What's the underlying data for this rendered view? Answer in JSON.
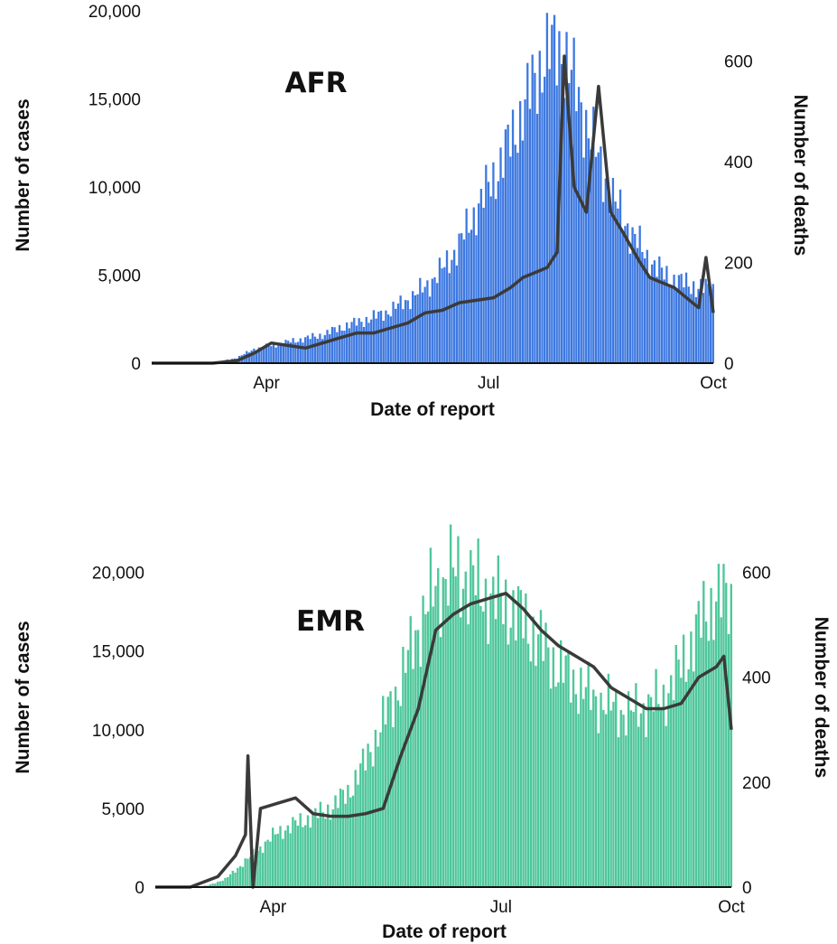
{
  "chart_data": [
    {
      "type": "bar",
      "title": "AFR",
      "xlabel": "Date of report",
      "ylabel": "Number of cases",
      "y2label": "Number of deaths",
      "x_tick_labels": [
        "Apr",
        "Jul",
        "Oct"
      ],
      "y_tick_labels": [
        "0",
        "5,000",
        "10,000",
        "15,000",
        "20,000"
      ],
      "y2_tick_labels": [
        "0",
        "200",
        "400",
        "600"
      ],
      "ylim": [
        0,
        20000
      ],
      "y2lim": [
        0,
        700
      ],
      "xlim": [
        "2020-02-14",
        "2020-10-01"
      ],
      "grid": false,
      "legend": "none",
      "colors": {
        "cases": "#3d78e0",
        "deaths": "#3a3a3a"
      },
      "series": [
        {
          "type": "bar",
          "axis": "left",
          "start_date": "2020-02-14",
          "granularity": "weekly",
          "x": [
            "2020-02-14",
            "2020-02-21",
            "2020-02-28",
            "2020-03-06",
            "2020-03-13",
            "2020-03-20",
            "2020-03-27",
            "2020-04-03",
            "2020-04-10",
            "2020-04-17",
            "2020-04-24",
            "2020-05-01",
            "2020-05-08",
            "2020-05-15",
            "2020-05-22",
            "2020-05-29",
            "2020-06-05",
            "2020-06-12",
            "2020-06-19",
            "2020-06-26",
            "2020-07-03",
            "2020-07-10",
            "2020-07-17",
            "2020-07-24",
            "2020-07-31",
            "2020-08-07",
            "2020-08-14",
            "2020-08-21",
            "2020-08-28",
            "2020-09-04",
            "2020-09-11",
            "2020-09-18",
            "2020-09-25",
            "2020-10-01"
          ],
          "values": [
            0,
            0,
            0,
            0,
            100,
            300,
            800,
            1000,
            1200,
            1400,
            1600,
            2000,
            2300,
            2600,
            3000,
            3600,
            4300,
            5300,
            6700,
            8700,
            10500,
            12600,
            15000,
            17500,
            18000,
            15000,
            12000,
            9300,
            7500,
            6000,
            5000,
            4600,
            4300,
            4200
          ]
        },
        {
          "type": "line",
          "axis": "right",
          "x": [
            "2020-02-14",
            "2020-02-28",
            "2020-03-10",
            "2020-03-20",
            "2020-03-27",
            "2020-04-03",
            "2020-04-10",
            "2020-04-17",
            "2020-04-24",
            "2020-05-01",
            "2020-05-08",
            "2020-05-15",
            "2020-05-22",
            "2020-05-29",
            "2020-06-05",
            "2020-06-12",
            "2020-06-19",
            "2020-06-26",
            "2020-07-03",
            "2020-07-10",
            "2020-07-15",
            "2020-07-20",
            "2020-07-25",
            "2020-07-29",
            "2020-08-01",
            "2020-08-05",
            "2020-08-10",
            "2020-08-15",
            "2020-08-20",
            "2020-08-25",
            "2020-09-01",
            "2020-09-05",
            "2020-09-10",
            "2020-09-15",
            "2020-09-20",
            "2020-09-25",
            "2020-09-28",
            "2020-10-01"
          ],
          "values": [
            0,
            0,
            0,
            5,
            20,
            40,
            35,
            30,
            40,
            50,
            60,
            60,
            70,
            80,
            100,
            105,
            120,
            125,
            130,
            150,
            170,
            180,
            190,
            220,
            610,
            350,
            300,
            550,
            300,
            260,
            200,
            170,
            160,
            150,
            130,
            110,
            210,
            100
          ]
        }
      ]
    },
    {
      "type": "bar",
      "title": "EMR",
      "xlabel": "Date of report",
      "ylabel": "Number of cases",
      "y2label": "Number of deaths",
      "x_tick_labels": [
        "Apr",
        "Jul",
        "Oct"
      ],
      "y_tick_labels": [
        "0",
        "5,000",
        "10,000",
        "15,000",
        "20,000"
      ],
      "y2_tick_labels": [
        "0",
        "200",
        "400",
        "600"
      ],
      "ylim": [
        0,
        22500
      ],
      "y2lim": [
        0,
        675
      ],
      "xlim": [
        "2020-02-14",
        "2020-10-01"
      ],
      "grid": false,
      "legend": "none",
      "colors": {
        "cases": "#4fc79b",
        "deaths": "#3a3a3a"
      },
      "series": [
        {
          "type": "bar",
          "axis": "left",
          "start_date": "2020-02-14",
          "granularity": "weekly",
          "x": [
            "2020-02-14",
            "2020-02-21",
            "2020-02-28",
            "2020-03-06",
            "2020-03-13",
            "2020-03-20",
            "2020-03-27",
            "2020-04-03",
            "2020-04-10",
            "2020-04-17",
            "2020-04-24",
            "2020-05-01",
            "2020-05-08",
            "2020-05-15",
            "2020-05-22",
            "2020-05-29",
            "2020-06-05",
            "2020-06-12",
            "2020-06-19",
            "2020-06-26",
            "2020-07-03",
            "2020-07-10",
            "2020-07-17",
            "2020-07-24",
            "2020-07-31",
            "2020-08-07",
            "2020-08-14",
            "2020-08-21",
            "2020-08-28",
            "2020-09-04",
            "2020-09-11",
            "2020-09-18",
            "2020-09-25",
            "2020-10-01"
          ],
          "values": [
            0,
            0,
            0,
            100,
            500,
            1500,
            2500,
            3500,
            4000,
            4500,
            5000,
            6000,
            8000,
            10500,
            13000,
            16500,
            19000,
            20000,
            19500,
            18500,
            18000,
            17000,
            15500,
            14000,
            13000,
            12000,
            11500,
            11000,
            11500,
            12000,
            14000,
            16500,
            18500,
            18000
          ]
        },
        {
          "type": "line",
          "axis": "right",
          "x": [
            "2020-02-14",
            "2020-02-28",
            "2020-03-10",
            "2020-03-17",
            "2020-03-21",
            "2020-03-22",
            "2020-03-24",
            "2020-03-27",
            "2020-04-03",
            "2020-04-10",
            "2020-04-17",
            "2020-04-24",
            "2020-05-01",
            "2020-05-08",
            "2020-05-15",
            "2020-05-22",
            "2020-05-29",
            "2020-06-05",
            "2020-06-12",
            "2020-06-19",
            "2020-06-26",
            "2020-07-03",
            "2020-07-10",
            "2020-07-17",
            "2020-07-24",
            "2020-07-31",
            "2020-08-07",
            "2020-08-14",
            "2020-08-21",
            "2020-08-28",
            "2020-09-04",
            "2020-09-11",
            "2020-09-18",
            "2020-09-25",
            "2020-09-28",
            "2020-10-01"
          ],
          "values": [
            0,
            0,
            20,
            60,
            100,
            250,
            0,
            150,
            160,
            170,
            140,
            135,
            135,
            140,
            150,
            250,
            340,
            490,
            520,
            540,
            550,
            560,
            530,
            490,
            460,
            440,
            420,
            380,
            360,
            340,
            340,
            350,
            400,
            420,
            440,
            300
          ]
        }
      ]
    }
  ]
}
